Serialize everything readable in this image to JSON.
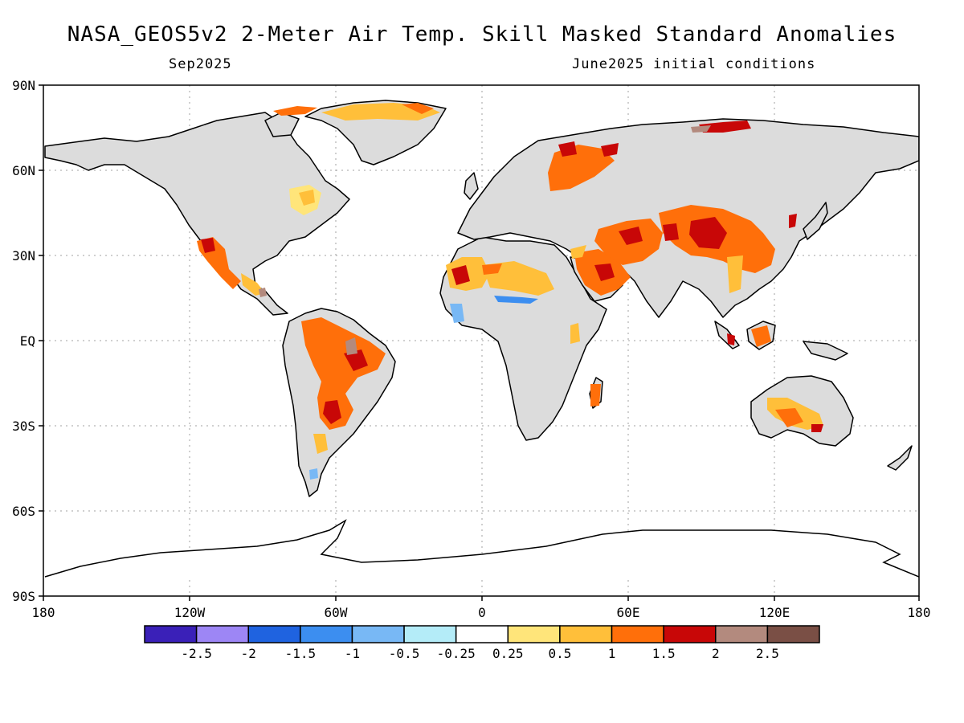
{
  "title": "NASA_GEOS5v2 2-Meter Air Temp. Skill Masked Standard Anomalies",
  "subtitle_left": "Sep2025",
  "subtitle_right": "June2025 initial conditions",
  "lat_labels": [
    "90N",
    "60N",
    "30N",
    "EQ",
    "30S",
    "60S",
    "90S"
  ],
  "lon_labels": [
    "180",
    "120W",
    "60W",
    "0",
    "60E",
    "120E",
    "180"
  ],
  "colorbar": {
    "colors": [
      "#3a20b8",
      "#9d86f5",
      "#1f63e0",
      "#3c8ef0",
      "#78b8f5",
      "#b4ecf8",
      "#ffffff",
      "#ffe57a",
      "#ffbf3a",
      "#ff6f0a",
      "#c80707",
      "#b38a7e",
      "#7a4f45"
    ],
    "labels": [
      "-2.5",
      "-2",
      "-1.5",
      "-1",
      "-0.5",
      "-0.25",
      "0.25",
      "0.5",
      "1",
      "1.5",
      "2",
      "2.5"
    ]
  },
  "legend_colors": {
    "land_neutral": "#dcdcdc",
    "ocean": "#ffffff",
    "coast": "#000000"
  }
}
